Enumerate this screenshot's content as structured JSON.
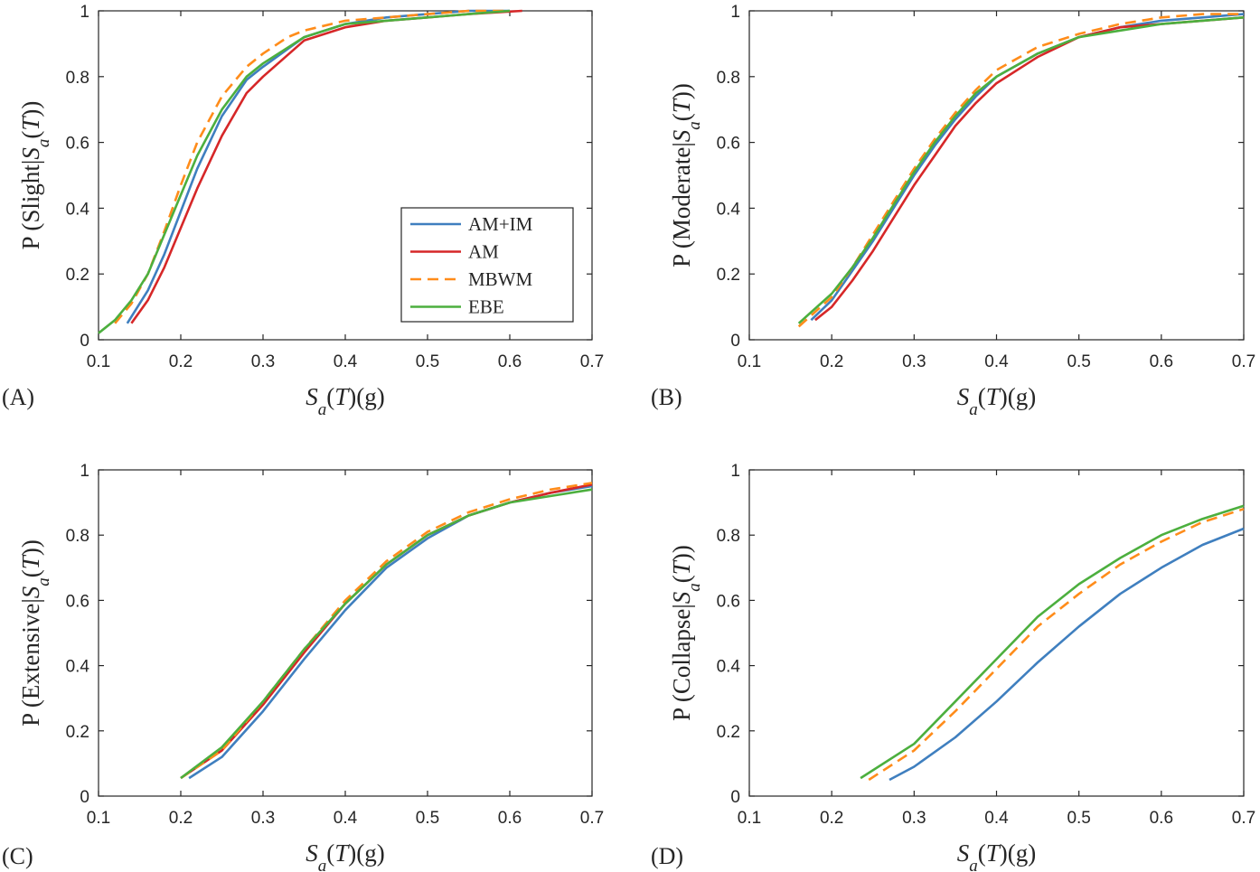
{
  "colors": {
    "AM+IM": "#3f7fbf",
    "AM": "#d62728",
    "MBWM": "#ff8c1a",
    "EBE": "#4caf3e",
    "axis": "#262626"
  },
  "legend": [
    "AM+IM",
    "AM",
    "MBWM",
    "EBE"
  ],
  "xlabel": "S_a(T)(g)",
  "chart_data": [
    {
      "type": "line",
      "panel": "(A)",
      "xlabel": "S_a(T)(g)",
      "ylabel": "P (Slight|S_a(T))",
      "xlim": [
        0.1,
        0.7
      ],
      "ylim": [
        0,
        1
      ],
      "xticks": [
        "0.1",
        "0.2",
        "0.3",
        "0.4",
        "0.5",
        "0.6",
        "0.7"
      ],
      "yticks": [
        "0",
        "0.2",
        "0.4",
        "0.6",
        "0.8",
        "1"
      ],
      "legend_position": "lower-right",
      "series": [
        {
          "name": "AM+IM",
          "style": "solid",
          "points": [
            [
              0.135,
              0.05
            ],
            [
              0.16,
              0.15
            ],
            [
              0.18,
              0.26
            ],
            [
              0.2,
              0.39
            ],
            [
              0.22,
              0.52
            ],
            [
              0.25,
              0.68
            ],
            [
              0.28,
              0.79
            ],
            [
              0.3,
              0.83
            ],
            [
              0.35,
              0.92
            ],
            [
              0.4,
              0.96
            ],
            [
              0.45,
              0.98
            ],
            [
              0.5,
              0.99
            ],
            [
              0.55,
              1.0
            ],
            [
              0.6,
              1.0
            ]
          ]
        },
        {
          "name": "AM",
          "style": "solid",
          "points": [
            [
              0.14,
              0.05
            ],
            [
              0.16,
              0.12
            ],
            [
              0.18,
              0.22
            ],
            [
              0.2,
              0.34
            ],
            [
              0.22,
              0.46
            ],
            [
              0.25,
              0.62
            ],
            [
              0.28,
              0.75
            ],
            [
              0.3,
              0.8
            ],
            [
              0.35,
              0.91
            ],
            [
              0.4,
              0.95
            ],
            [
              0.45,
              0.97
            ],
            [
              0.5,
              0.98
            ],
            [
              0.55,
              0.99
            ],
            [
              0.615,
              1.0
            ]
          ]
        },
        {
          "name": "MBWM",
          "style": "dashed",
          "points": [
            [
              0.12,
              0.05
            ],
            [
              0.14,
              0.11
            ],
            [
              0.16,
              0.2
            ],
            [
              0.18,
              0.33
            ],
            [
              0.2,
              0.47
            ],
            [
              0.22,
              0.6
            ],
            [
              0.25,
              0.74
            ],
            [
              0.28,
              0.83
            ],
            [
              0.3,
              0.87
            ],
            [
              0.33,
              0.92
            ],
            [
              0.35,
              0.94
            ],
            [
              0.4,
              0.97
            ],
            [
              0.45,
              0.98
            ],
            [
              0.5,
              0.99
            ],
            [
              0.55,
              1.0
            ],
            [
              0.6,
              1.0
            ]
          ]
        },
        {
          "name": "EBE",
          "style": "solid",
          "points": [
            [
              0.1,
              0.02
            ],
            [
              0.12,
              0.06
            ],
            [
              0.14,
              0.12
            ],
            [
              0.16,
              0.2
            ],
            [
              0.18,
              0.32
            ],
            [
              0.2,
              0.44
            ],
            [
              0.22,
              0.56
            ],
            [
              0.25,
              0.7
            ],
            [
              0.28,
              0.8
            ],
            [
              0.3,
              0.84
            ],
            [
              0.35,
              0.92
            ],
            [
              0.4,
              0.96
            ],
            [
              0.45,
              0.97
            ],
            [
              0.5,
              0.98
            ],
            [
              0.55,
              0.99
            ],
            [
              0.6,
              1.0
            ]
          ]
        }
      ]
    },
    {
      "type": "line",
      "panel": "(B)",
      "xlabel": "S_a(T)(g)",
      "ylabel": "P (Moderate|S_a(T))",
      "xlim": [
        0.1,
        0.7
      ],
      "ylim": [
        0,
        1
      ],
      "xticks": [
        "0.1",
        "0.2",
        "0.3",
        "0.4",
        "0.5",
        "0.6",
        "0.7"
      ],
      "yticks": [
        "0",
        "0.2",
        "0.4",
        "0.6",
        "0.8",
        "1"
      ],
      "series": [
        {
          "name": "AM+IM",
          "style": "solid",
          "points": [
            [
              0.175,
              0.06
            ],
            [
              0.2,
              0.12
            ],
            [
              0.225,
              0.21
            ],
            [
              0.25,
              0.3
            ],
            [
              0.275,
              0.4
            ],
            [
              0.3,
              0.5
            ],
            [
              0.325,
              0.59
            ],
            [
              0.35,
              0.67
            ],
            [
              0.375,
              0.74
            ],
            [
              0.4,
              0.8
            ],
            [
              0.45,
              0.87
            ],
            [
              0.5,
              0.92
            ],
            [
              0.55,
              0.95
            ],
            [
              0.6,
              0.97
            ],
            [
              0.65,
              0.98
            ],
            [
              0.7,
              0.99
            ]
          ]
        },
        {
          "name": "AM",
          "style": "solid",
          "points": [
            [
              0.18,
              0.06
            ],
            [
              0.2,
              0.1
            ],
            [
              0.225,
              0.18
            ],
            [
              0.25,
              0.27
            ],
            [
              0.275,
              0.37
            ],
            [
              0.3,
              0.47
            ],
            [
              0.325,
              0.56
            ],
            [
              0.35,
              0.65
            ],
            [
              0.375,
              0.72
            ],
            [
              0.4,
              0.78
            ],
            [
              0.45,
              0.86
            ],
            [
              0.5,
              0.92
            ],
            [
              0.55,
              0.95
            ],
            [
              0.6,
              0.96
            ],
            [
              0.65,
              0.97
            ],
            [
              0.7,
              0.98
            ]
          ]
        },
        {
          "name": "MBWM",
          "style": "dashed",
          "points": [
            [
              0.16,
              0.04
            ],
            [
              0.2,
              0.13
            ],
            [
              0.225,
              0.22
            ],
            [
              0.25,
              0.32
            ],
            [
              0.275,
              0.42
            ],
            [
              0.3,
              0.52
            ],
            [
              0.325,
              0.61
            ],
            [
              0.35,
              0.69
            ],
            [
              0.375,
              0.76
            ],
            [
              0.4,
              0.82
            ],
            [
              0.45,
              0.89
            ],
            [
              0.5,
              0.93
            ],
            [
              0.55,
              0.96
            ],
            [
              0.6,
              0.98
            ],
            [
              0.65,
              0.99
            ],
            [
              0.7,
              0.99
            ]
          ]
        },
        {
          "name": "EBE",
          "style": "solid",
          "points": [
            [
              0.16,
              0.05
            ],
            [
              0.2,
              0.14
            ],
            [
              0.225,
              0.22
            ],
            [
              0.25,
              0.31
            ],
            [
              0.275,
              0.41
            ],
            [
              0.3,
              0.51
            ],
            [
              0.325,
              0.6
            ],
            [
              0.35,
              0.68
            ],
            [
              0.375,
              0.75
            ],
            [
              0.4,
              0.8
            ],
            [
              0.45,
              0.87
            ],
            [
              0.5,
              0.92
            ],
            [
              0.55,
              0.94
            ],
            [
              0.6,
              0.96
            ],
            [
              0.65,
              0.97
            ],
            [
              0.7,
              0.98
            ]
          ]
        }
      ]
    },
    {
      "type": "line",
      "panel": "(C)",
      "xlabel": "S_a(T)(g)",
      "ylabel": "P (Extensive|S_a(T))",
      "xlim": [
        0.1,
        0.7
      ],
      "ylim": [
        0,
        1
      ],
      "xticks": [
        "0.1",
        "0.2",
        "0.3",
        "0.4",
        "0.5",
        "0.6",
        "0.7"
      ],
      "yticks": [
        "0",
        "0.2",
        "0.4",
        "0.6",
        "0.8",
        "1"
      ],
      "series": [
        {
          "name": "AM+IM",
          "style": "solid",
          "points": [
            [
              0.21,
              0.055
            ],
            [
              0.25,
              0.12
            ],
            [
              0.3,
              0.26
            ],
            [
              0.35,
              0.42
            ],
            [
              0.4,
              0.57
            ],
            [
              0.45,
              0.7
            ],
            [
              0.5,
              0.79
            ],
            [
              0.55,
              0.86
            ],
            [
              0.6,
              0.9
            ],
            [
              0.65,
              0.93
            ],
            [
              0.7,
              0.95
            ]
          ]
        },
        {
          "name": "AM",
          "style": "solid",
          "points": [
            [
              0.2,
              0.055
            ],
            [
              0.25,
              0.14
            ],
            [
              0.3,
              0.28
            ],
            [
              0.35,
              0.44
            ],
            [
              0.4,
              0.59
            ],
            [
              0.45,
              0.71
            ],
            [
              0.5,
              0.8
            ],
            [
              0.55,
              0.86
            ],
            [
              0.6,
              0.9
            ],
            [
              0.65,
              0.93
            ],
            [
              0.7,
              0.955
            ]
          ]
        },
        {
          "name": "MBWM",
          "style": "dashed",
          "points": [
            [
              0.2,
              0.055
            ],
            [
              0.25,
              0.14
            ],
            [
              0.3,
              0.29
            ],
            [
              0.35,
              0.45
            ],
            [
              0.4,
              0.6
            ],
            [
              0.45,
              0.72
            ],
            [
              0.5,
              0.81
            ],
            [
              0.55,
              0.87
            ],
            [
              0.6,
              0.91
            ],
            [
              0.65,
              0.94
            ],
            [
              0.7,
              0.96
            ]
          ]
        },
        {
          "name": "EBE",
          "style": "solid",
          "points": [
            [
              0.2,
              0.055
            ],
            [
              0.25,
              0.15
            ],
            [
              0.3,
              0.29
            ],
            [
              0.35,
              0.45
            ],
            [
              0.4,
              0.59
            ],
            [
              0.45,
              0.71
            ],
            [
              0.5,
              0.8
            ],
            [
              0.55,
              0.86
            ],
            [
              0.6,
              0.9
            ],
            [
              0.65,
              0.92
            ],
            [
              0.7,
              0.94
            ]
          ]
        }
      ]
    },
    {
      "type": "line",
      "panel": "(D)",
      "xlabel": "S_a(T)(g)",
      "ylabel": "P (Collapse|S_a(T))",
      "xlim": [
        0.1,
        0.7
      ],
      "ylim": [
        0,
        1
      ],
      "xticks": [
        "0.1",
        "0.2",
        "0.3",
        "0.4",
        "0.5",
        "0.6",
        "0.7"
      ],
      "yticks": [
        "0",
        "0.2",
        "0.4",
        "0.6",
        "0.8",
        "1"
      ],
      "series": [
        {
          "name": "AM+IM",
          "style": "solid",
          "points": [
            [
              0.27,
              0.05
            ],
            [
              0.3,
              0.09
            ],
            [
              0.35,
              0.18
            ],
            [
              0.4,
              0.29
            ],
            [
              0.45,
              0.41
            ],
            [
              0.5,
              0.52
            ],
            [
              0.55,
              0.62
            ],
            [
              0.6,
              0.7
            ],
            [
              0.65,
              0.77
            ],
            [
              0.7,
              0.82
            ]
          ]
        },
        {
          "name": "MBWM",
          "style": "dashed",
          "points": [
            [
              0.245,
              0.05
            ],
            [
              0.3,
              0.14
            ],
            [
              0.35,
              0.26
            ],
            [
              0.4,
              0.39
            ],
            [
              0.45,
              0.52
            ],
            [
              0.5,
              0.62
            ],
            [
              0.55,
              0.71
            ],
            [
              0.6,
              0.78
            ],
            [
              0.65,
              0.84
            ],
            [
              0.7,
              0.88
            ]
          ]
        },
        {
          "name": "EBE",
          "style": "solid",
          "points": [
            [
              0.235,
              0.055
            ],
            [
              0.3,
              0.16
            ],
            [
              0.35,
              0.29
            ],
            [
              0.4,
              0.42
            ],
            [
              0.45,
              0.55
            ],
            [
              0.5,
              0.65
            ],
            [
              0.55,
              0.73
            ],
            [
              0.6,
              0.8
            ],
            [
              0.65,
              0.85
            ],
            [
              0.7,
              0.89
            ]
          ]
        }
      ]
    }
  ]
}
